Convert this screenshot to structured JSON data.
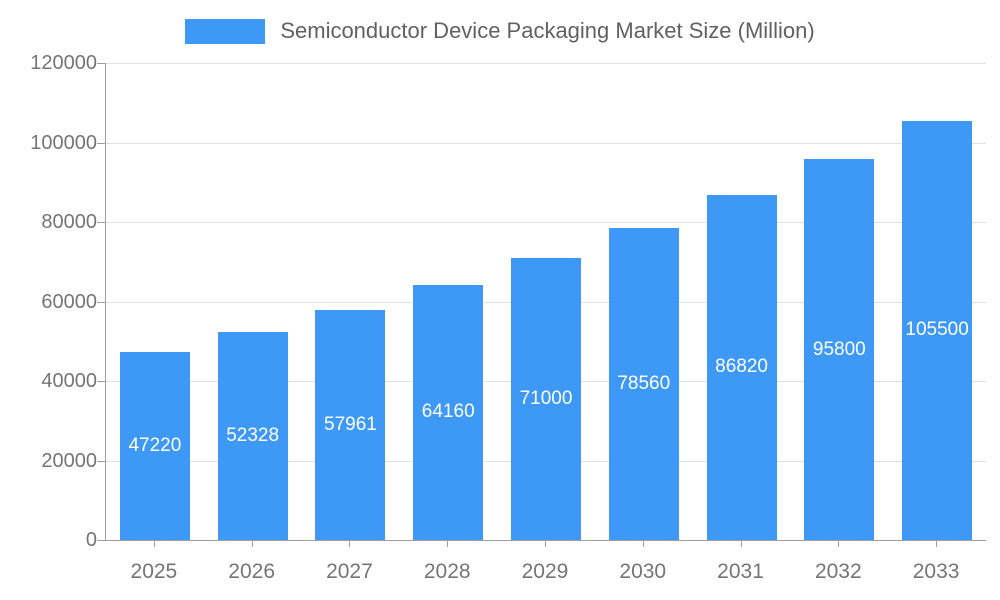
{
  "chart_data": {
    "type": "bar",
    "title": "Semiconductor Device Packaging Market Size (Million)",
    "categories": [
      "2025",
      "2026",
      "2027",
      "2028",
      "2029",
      "2030",
      "2031",
      "2032",
      "2033"
    ],
    "values": [
      47220,
      52328,
      57961,
      64160,
      71000,
      78560,
      86820,
      95800,
      105500
    ],
    "xlabel": "",
    "ylabel": "",
    "ylim": [
      0,
      120000
    ],
    "ytick_step": 20000,
    "yticks": [
      0,
      20000,
      40000,
      60000,
      80000,
      100000,
      120000
    ],
    "grid": true,
    "legend_position": "top",
    "colors": {
      "bar": "#3D99F5",
      "bar_value_label": "#FFFFFF",
      "axis_text": "#757575",
      "title_text": "#616161",
      "gridline": "#E0E0E0",
      "axis_line": "#9E9E9E",
      "background": "#FFFFFF"
    }
  }
}
